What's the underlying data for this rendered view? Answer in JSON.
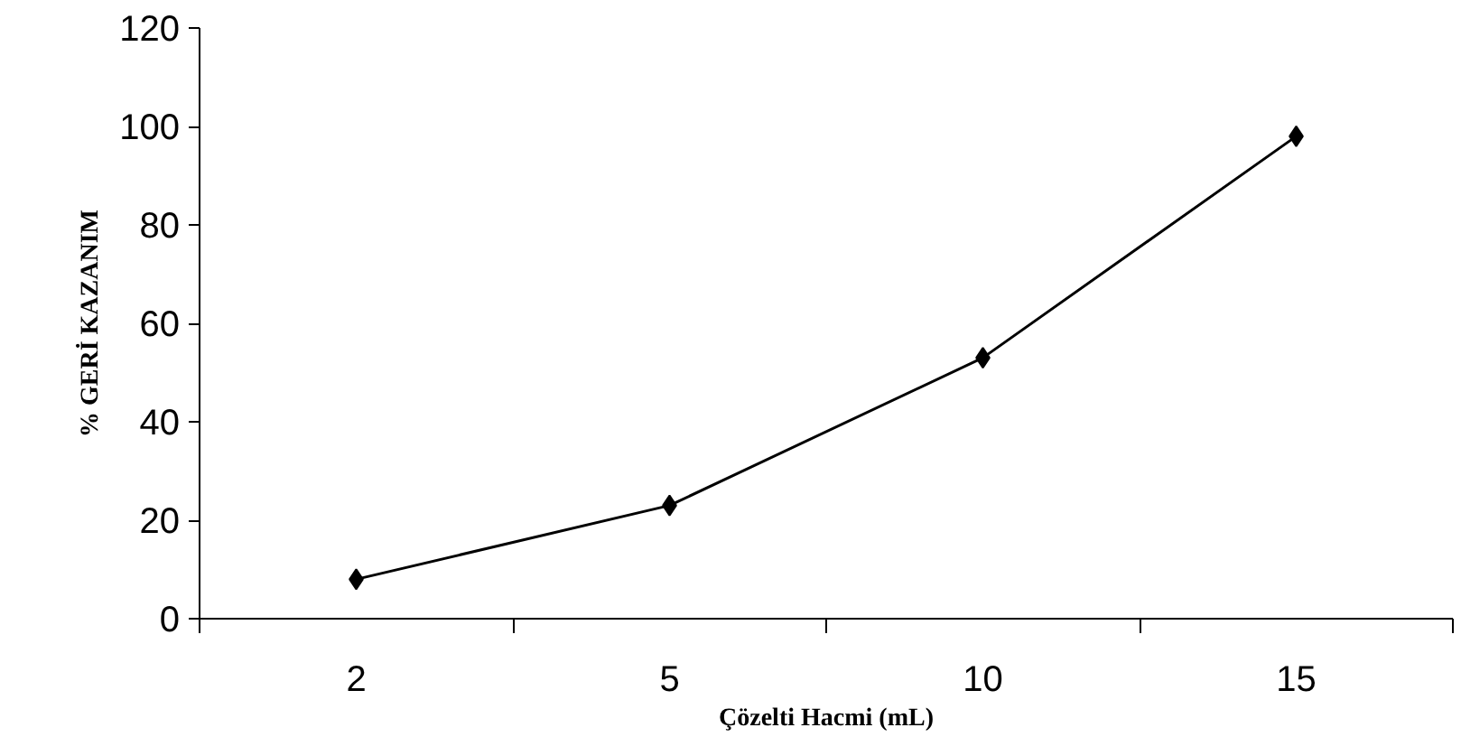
{
  "chart_data": {
    "type": "line",
    "xlabel": "Çözelti Hacmi (mL)",
    "ylabel": "% GERİ KAZANIM",
    "categories": [
      "2",
      "5",
      "10",
      "15"
    ],
    "series": [
      {
        "color": "#000000",
        "values": [
          8,
          23,
          53,
          98
        ]
      }
    ],
    "ylim": [
      0,
      120
    ],
    "yticks": [
      0,
      20,
      40,
      60,
      80,
      100,
      120
    ],
    "grid": false,
    "marker": "diamond",
    "line_style": "solid"
  }
}
